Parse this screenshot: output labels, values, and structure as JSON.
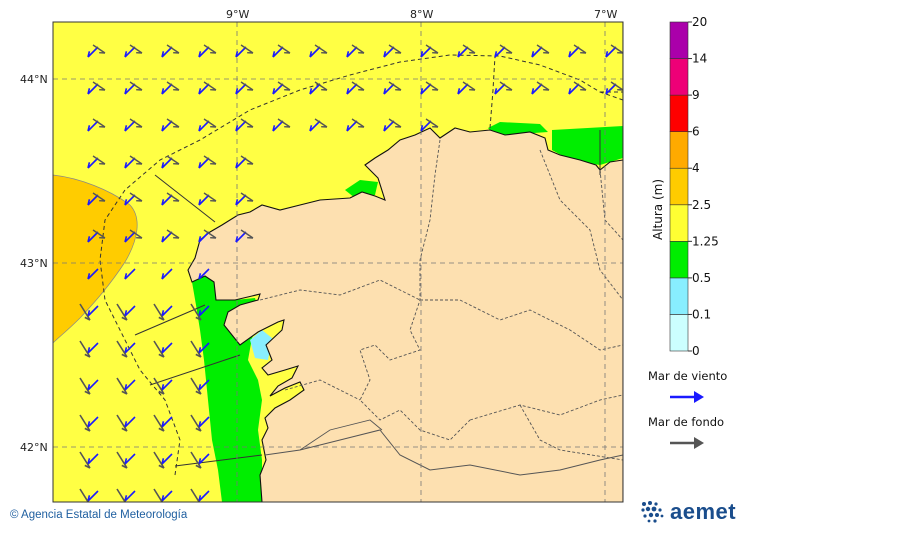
{
  "map": {
    "lon_labels": [
      "9°W",
      "8°W",
      "7°W"
    ],
    "lat_labels": [
      "44°N",
      "43°N",
      "42°N"
    ],
    "land_color": "#fde0b0",
    "sea_default_color": "#ffff44"
  },
  "colorbar": {
    "title": "Altura (m)",
    "ticks": [
      "0",
      "0.1",
      "0.5",
      "1.25",
      "2.5",
      "4",
      "6",
      "9",
      "14",
      "20"
    ],
    "colors": [
      "#ccffff",
      "#88eeff",
      "#00ee00",
      "#ffff33",
      "#ffcc00",
      "#ffaa00",
      "#ff0000",
      "#ee0077",
      "#aa00aa"
    ]
  },
  "legend": {
    "wind_sea_label": "Mar de viento",
    "wind_sea_color": "#1a1aff",
    "swell_label": "Mar de fondo",
    "swell_color": "#555555"
  },
  "footer": {
    "credit": "© Agencia Estatal de Meteorología",
    "logo_text": "aemet"
  }
}
